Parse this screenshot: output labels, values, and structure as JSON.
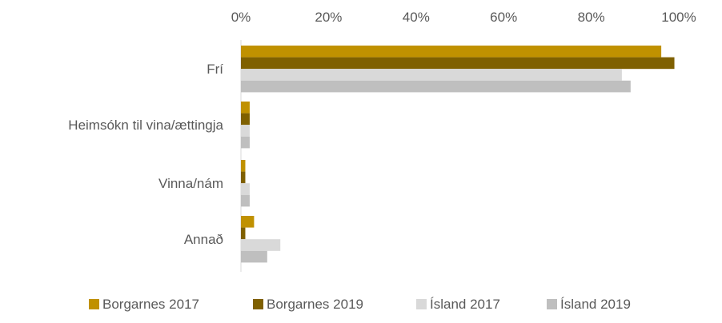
{
  "chart_data": {
    "type": "bar",
    "orientation": "horizontal",
    "x_axis_position": "top",
    "categories": [
      "Frí",
      "Heimsókn til vina/ættingja",
      "Vinna/nám",
      "Annað"
    ],
    "series": [
      {
        "name": "Borgarnes 2017",
        "color": "#C09100",
        "values": [
          96,
          2,
          1,
          3
        ]
      },
      {
        "name": "Borgarnes 2019",
        "color": "#7F6000",
        "values": [
          99,
          2,
          1,
          1
        ]
      },
      {
        "name": "Ísland 2017",
        "color": "#D9D9D9",
        "values": [
          87,
          2,
          2,
          9
        ]
      },
      {
        "name": "Ísland 2019",
        "color": "#BFBFBF",
        "values": [
          89,
          2,
          2,
          6
        ]
      }
    ],
    "xlim": [
      0,
      100
    ],
    "x_ticks": [
      "0%",
      "20%",
      "40%",
      "60%",
      "80%",
      "100%"
    ],
    "grid": false,
    "legend_position": "bottom",
    "title": "",
    "xlabel": "",
    "ylabel": ""
  }
}
